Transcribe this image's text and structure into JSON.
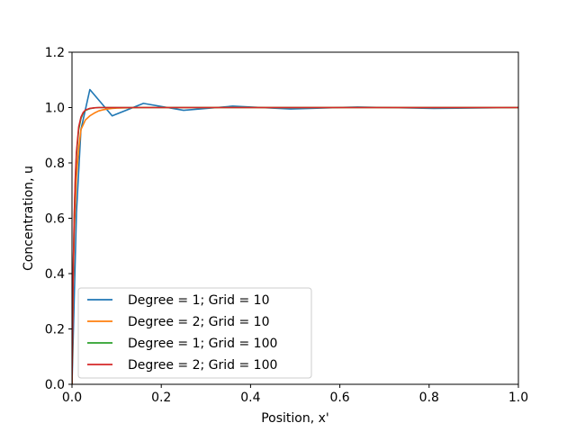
{
  "chart_data": {
    "type": "line",
    "title": "",
    "xlabel": "Position, x'",
    "ylabel": "Concentration, u",
    "xlim": [
      0.0,
      1.0
    ],
    "ylim": [
      0.0,
      1.2
    ],
    "xticks": [
      0.0,
      0.2,
      0.4,
      0.6,
      0.8,
      1.0
    ],
    "xtick_labels": [
      "0.0",
      "0.2",
      "0.4",
      "0.6",
      "0.8",
      "1.0"
    ],
    "yticks": [
      0.0,
      0.2,
      0.4,
      0.6,
      0.8,
      1.0,
      1.2
    ],
    "ytick_labels": [
      "0.0",
      "0.2",
      "0.4",
      "0.6",
      "0.8",
      "1.0",
      "1.2"
    ],
    "grid": false,
    "legend_position": "lower-left",
    "series": [
      {
        "name": "Degree = 1; Grid = 10",
        "color": "#1f77b4",
        "x": [
          0.0,
          0.01,
          0.02,
          0.04,
          0.09,
          0.16,
          0.25,
          0.36,
          0.49,
          0.64,
          0.81,
          1.0
        ],
        "y": [
          0.0,
          0.62,
          0.92,
          1.065,
          0.97,
          1.015,
          0.99,
          1.005,
          0.995,
          1.002,
          0.997,
          1.0
        ]
      },
      {
        "name": "Degree = 2; Grid = 10",
        "color": "#ff7f0e",
        "x": [
          0.0,
          0.0025,
          0.005,
          0.01,
          0.015,
          0.02,
          0.03,
          0.04,
          0.05,
          0.06,
          0.07,
          0.08,
          0.09,
          0.1,
          0.12,
          0.16,
          0.25,
          0.5,
          0.75,
          1.0
        ],
        "y": [
          0.0,
          0.35,
          0.55,
          0.75,
          0.85,
          0.92,
          0.955,
          0.97,
          0.98,
          0.988,
          0.992,
          0.995,
          0.997,
          0.998,
          0.999,
          1.0,
          1.0,
          1.0,
          1.0,
          1.0
        ]
      },
      {
        "name": "Degree = 1; Grid = 100",
        "color": "#2ca02c",
        "x": [
          0.0,
          0.0025,
          0.005,
          0.0075,
          0.01,
          0.015,
          0.02,
          0.025,
          0.03,
          0.04,
          0.05,
          0.06,
          0.07,
          0.08,
          0.1,
          0.15,
          0.3,
          0.6,
          1.0
        ],
        "y": [
          0.0,
          0.38,
          0.6,
          0.74,
          0.83,
          0.92,
          0.96,
          0.98,
          0.99,
          0.996,
          0.999,
          1.0,
          1.0,
          1.0,
          1.0,
          1.0,
          1.0,
          1.0,
          1.0
        ]
      },
      {
        "name": "Degree = 2; Grid = 100",
        "color": "#d62728",
        "x": [
          0.0,
          0.0025,
          0.005,
          0.0075,
          0.01,
          0.015,
          0.02,
          0.025,
          0.03,
          0.04,
          0.05,
          0.06,
          0.07,
          0.08,
          0.1,
          0.15,
          0.3,
          0.6,
          1.0
        ],
        "y": [
          0.0,
          0.39,
          0.61,
          0.75,
          0.84,
          0.93,
          0.965,
          0.982,
          0.991,
          0.997,
          0.999,
          1.0,
          1.0,
          1.0,
          1.0,
          1.0,
          1.0,
          1.0,
          1.0
        ]
      }
    ]
  }
}
